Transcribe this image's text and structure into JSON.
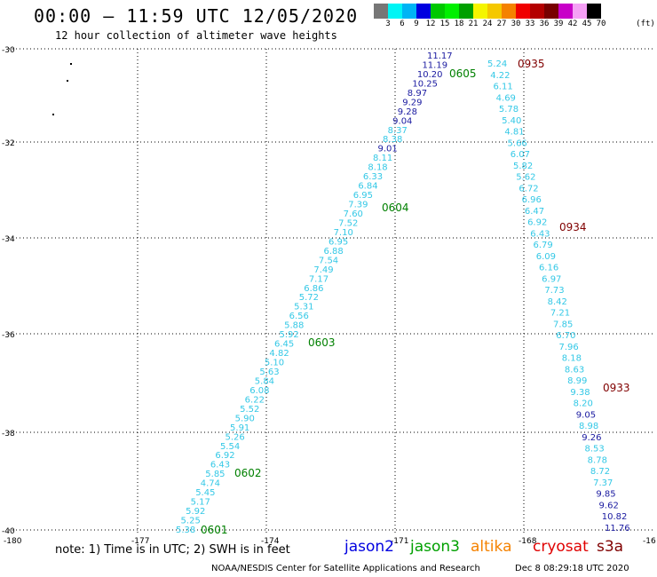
{
  "header": {
    "title": "00:00 – 11:59 UTC 12/05/2020",
    "subtitle": "12 hour collection of altimeter wave heights"
  },
  "color_scale": {
    "unit": "(ft)",
    "colors": [
      "#777777",
      "#00f5f5",
      "#00b4f5",
      "#0000e0",
      "#00c800",
      "#00f000",
      "#00a000",
      "#f5f500",
      "#f5c800",
      "#f58200",
      "#f00000",
      "#b40000",
      "#780000",
      "#c800c8",
      "#f5a0f5",
      "#000000"
    ],
    "labels": [
      "3",
      "6",
      "9",
      "12",
      "15",
      "18",
      "21",
      "24",
      "27",
      "30",
      "33",
      "36",
      "39",
      "42",
      "45",
      "70"
    ]
  },
  "axes": {
    "x_ticks": [
      "-180",
      "-177",
      "-174",
      "-171",
      "-168",
      "-16"
    ],
    "y_ticks": [
      "-30",
      "-32",
      "-34",
      "-36",
      "-38",
      "-40"
    ]
  },
  "tracks": {
    "cyan_color": "#33c8e6",
    "blue_color": "#1a1aa0",
    "green_color": "#008000",
    "darkred_color": "#800000",
    "track_a": [
      "5.38",
      "5.25",
      "5.92",
      "5.17",
      "5.45",
      "4.74",
      "5.85",
      "6.43",
      "6.92",
      "5.54",
      "5.26",
      "5.91",
      "5.90",
      "5.52",
      "6.22",
      "6.08",
      "5.84",
      "5.63",
      "5.10",
      "4.82",
      "6.45",
      "5.92",
      "5.88",
      "6.56",
      "5.31",
      "5.72",
      "6.86",
      "7.17",
      "7.49",
      "7.54",
      "6.88",
      "6.95",
      "7.10",
      "7.52",
      "7.60",
      "7.39",
      "6.95",
      "6.84",
      "6.33",
      "8.18",
      "8.11",
      "9.01",
      "8.38",
      "8.37",
      "9.04",
      "9.28",
      "9.29",
      "8.97",
      "10.25",
      "10.20",
      "11.19",
      "11.17"
    ],
    "track_a_blue": [
      41,
      44,
      45,
      46,
      47,
      48,
      49,
      50,
      51
    ],
    "track_b": [
      "5.24",
      "4.22",
      "6.11",
      "4.69",
      "5.78",
      "5.40",
      "4.81",
      "5.66",
      "6.07",
      "5.82",
      "5.62",
      "6.72",
      "6.96",
      "6.47",
      "6.92",
      "6.43",
      "6.79",
      "6.09",
      "6.16",
      "6.97",
      "7.73",
      "8.42",
      "7.21",
      "7.85",
      "6.70",
      "7.96",
      "8.18",
      "8.63",
      "8.99",
      "9.38",
      "8.20",
      "9.05",
      "8.98",
      "9.26",
      "8.53",
      "8.78",
      "8.72",
      "7.37",
      "9.85",
      "9.62",
      "10.82",
      "11.76"
    ],
    "track_b_blue": [
      31,
      33,
      38,
      39,
      40,
      41
    ],
    "time_labels_green": [
      "0605",
      "0604",
      "0603",
      "0602",
      "0601"
    ],
    "time_labels_red": [
      "0935",
      "0934",
      "0933"
    ]
  },
  "footer": {
    "note": "note: 1) Time is in UTC; 2) SWH is in feet",
    "legend": [
      {
        "name": "jason2",
        "color": "#0000e0"
      },
      {
        "name": "jason3",
        "color": "#00a000"
      },
      {
        "name": "altika",
        "color": "#f58200"
      },
      {
        "name": "cryosat",
        "color": "#e00000"
      },
      {
        "name": "s3a",
        "color": "#800000"
      }
    ],
    "credit": "NOAA/NESDIS Center for Satellite Applications and Research",
    "timestamp": "Dec  8 08:29:18 UTC 2020"
  }
}
